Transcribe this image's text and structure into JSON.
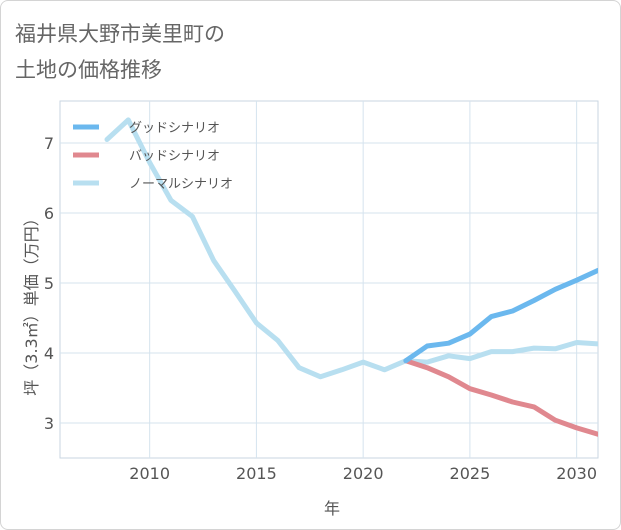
{
  "chart_data": {
    "type": "line",
    "title_lines": [
      "福井県大野市美里町の",
      "土地の価格推移"
    ],
    "xlabel": "年",
    "ylabel": "坪（3.3㎡）単価（万円）",
    "xlim": [
      2005.8,
      2031
    ],
    "ylim": [
      2.5,
      7.6
    ],
    "x_ticks": [
      2010,
      2015,
      2020,
      2025,
      2030
    ],
    "y_ticks": [
      3,
      4,
      5,
      6,
      7
    ],
    "grid": true,
    "legend_position": "top-left",
    "series": [
      {
        "name": "ノーマルシナリオ",
        "color": "#b8dff0",
        "x": [
          2008,
          2009,
          2010,
          2011,
          2012,
          2013,
          2014,
          2015,
          2016,
          2017,
          2018,
          2019,
          2020,
          2021,
          2022,
          2023,
          2024,
          2025,
          2026,
          2027,
          2028,
          2029,
          2030,
          2031
        ],
        "values": [
          7.05,
          7.33,
          6.72,
          6.18,
          5.95,
          5.32,
          4.88,
          4.43,
          4.18,
          3.79,
          3.66,
          3.76,
          3.87,
          3.76,
          3.89,
          3.87,
          3.96,
          3.92,
          4.02,
          4.02,
          4.07,
          4.06,
          4.15,
          4.13
        ]
      },
      {
        "name": "バッドシナリオ",
        "color": "#e0888f",
        "x": [
          2022,
          2023,
          2024,
          2025,
          2026,
          2027,
          2028,
          2029,
          2030,
          2031
        ],
        "values": [
          3.89,
          3.79,
          3.66,
          3.49,
          3.4,
          3.3,
          3.23,
          3.04,
          2.93,
          2.84
        ]
      },
      {
        "name": "グッドシナリオ",
        "color": "#6bb8ee",
        "x": [
          2022,
          2023,
          2024,
          2025,
          2026,
          2027,
          2028,
          2029,
          2030,
          2031
        ],
        "values": [
          3.89,
          4.1,
          4.14,
          4.27,
          4.52,
          4.6,
          4.75,
          4.91,
          5.04,
          5.18
        ]
      }
    ],
    "legend": [
      {
        "label": "グッドシナリオ",
        "color": "#6bb8ee"
      },
      {
        "label": "バッドシナリオ",
        "color": "#e0888f"
      },
      {
        "label": "ノーマルシナリオ",
        "color": "#b8dff0"
      }
    ]
  }
}
